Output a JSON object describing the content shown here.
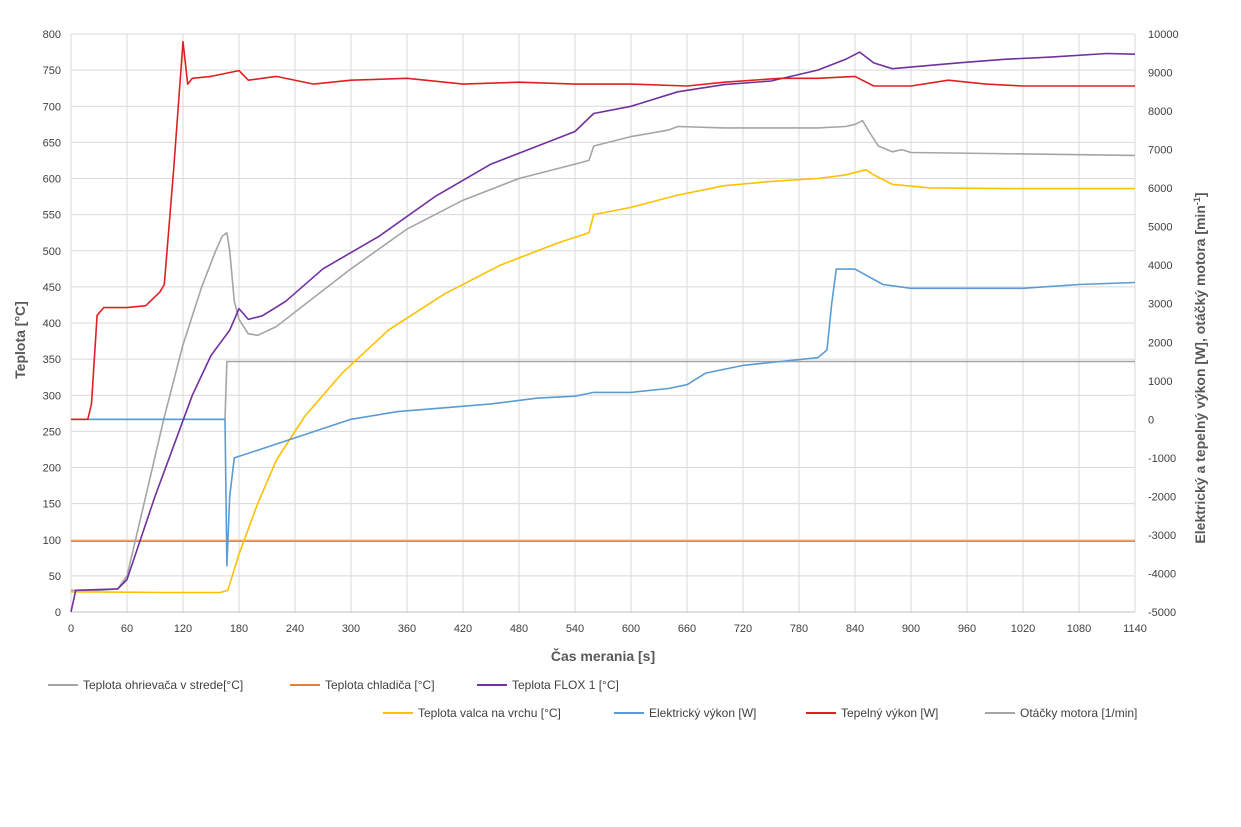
{
  "chart_data": {
    "type": "line",
    "title": "",
    "xlabel": "Čas merania [s]",
    "ylabel_left": "Teplota [°C]",
    "ylabel_right": "Elektrický a tepelný výkon [W], otáčký motora [min⁻¹]",
    "ylabel_right_main": "Elektrický a tepelný výkon [W], otáčký motora [min",
    "ylabel_right_sup": "-1",
    "ylabel_right_end": "]",
    "xlim": [
      0,
      1140
    ],
    "ylim_left": [
      0,
      800
    ],
    "ylim_right": [
      -5000,
      10000
    ],
    "x_ticks": [
      "0",
      "60",
      "120",
      "180",
      "240",
      "300",
      "360",
      "420",
      "480",
      "540",
      "600",
      "660",
      "720",
      "780",
      "840",
      "900",
      "960",
      "1020",
      "1080",
      "1140"
    ],
    "y_left_ticks": [
      "0",
      "50",
      "100",
      "150",
      "200",
      "250",
      "300",
      "350",
      "400",
      "450",
      "500",
      "550",
      "600",
      "650",
      "700",
      "750",
      "800"
    ],
    "y_right_ticks": [
      "-5000",
      "-4000",
      "-3000",
      "-2000",
      "-1000",
      "0",
      "1000",
      "2000",
      "3000",
      "4000",
      "5000",
      "6000",
      "7000",
      "8000",
      "9000",
      "10000"
    ],
    "grid": true,
    "legend_position": "bottom",
    "series": [
      {
        "name": "Teplota ohrievača v strede[°C]",
        "axis": "left",
        "color": "#a5a5a5",
        "points": [
          [
            0,
            30
          ],
          [
            30,
            30
          ],
          [
            50,
            32
          ],
          [
            60,
            50
          ],
          [
            80,
            160
          ],
          [
            100,
            270
          ],
          [
            120,
            370
          ],
          [
            140,
            450
          ],
          [
            155,
            500
          ],
          [
            162,
            520
          ],
          [
            167,
            525
          ],
          [
            170,
            500
          ],
          [
            175,
            430
          ],
          [
            180,
            405
          ],
          [
            190,
            385
          ],
          [
            200,
            383
          ],
          [
            220,
            395
          ],
          [
            250,
            425
          ],
          [
            300,
            475
          ],
          [
            360,
            530
          ],
          [
            420,
            570
          ],
          [
            480,
            600
          ],
          [
            540,
            620
          ],
          [
            555,
            625
          ],
          [
            560,
            645
          ],
          [
            600,
            658
          ],
          [
            640,
            667
          ],
          [
            650,
            672
          ],
          [
            700,
            670
          ],
          [
            800,
            670
          ],
          [
            830,
            672
          ],
          [
            840,
            675
          ],
          [
            848,
            680
          ],
          [
            855,
            665
          ],
          [
            865,
            645
          ],
          [
            880,
            637
          ],
          [
            890,
            640
          ],
          [
            900,
            636
          ],
          [
            1140,
            632
          ]
        ]
      },
      {
        "name": "Teplota chladiča [°C]",
        "axis": "left",
        "color": "#ed7d31",
        "points": [
          [
            0,
            98
          ],
          [
            1140,
            98
          ]
        ]
      },
      {
        "name": "Teplota FLOX 1 [°C]",
        "axis": "left",
        "color": "#7030a0",
        "points": [
          [
            0,
            0
          ],
          [
            5,
            30
          ],
          [
            50,
            32
          ],
          [
            60,
            45
          ],
          [
            90,
            160
          ],
          [
            110,
            230
          ],
          [
            130,
            300
          ],
          [
            150,
            355
          ],
          [
            170,
            390
          ],
          [
            180,
            420
          ],
          [
            190,
            405
          ],
          [
            205,
            410
          ],
          [
            230,
            430
          ],
          [
            270,
            475
          ],
          [
            330,
            520
          ],
          [
            390,
            575
          ],
          [
            450,
            620
          ],
          [
            510,
            650
          ],
          [
            540,
            665
          ],
          [
            560,
            690
          ],
          [
            600,
            700
          ],
          [
            650,
            720
          ],
          [
            700,
            730
          ],
          [
            750,
            735
          ],
          [
            800,
            750
          ],
          [
            830,
            765
          ],
          [
            845,
            775
          ],
          [
            860,
            760
          ],
          [
            880,
            752
          ],
          [
            950,
            760
          ],
          [
            1000,
            765
          ],
          [
            1050,
            768
          ],
          [
            1110,
            773
          ],
          [
            1140,
            772
          ]
        ]
      },
      {
        "name": "Teplota valca na vrchu [°C]",
        "axis": "left",
        "color": "#ffc000",
        "points": [
          [
            0,
            28
          ],
          [
            100,
            27
          ],
          [
            160,
            27
          ],
          [
            168,
            30
          ],
          [
            180,
            80
          ],
          [
            200,
            150
          ],
          [
            220,
            210
          ],
          [
            250,
            270
          ],
          [
            290,
            330
          ],
          [
            340,
            390
          ],
          [
            400,
            440
          ],
          [
            460,
            480
          ],
          [
            520,
            510
          ],
          [
            555,
            525
          ],
          [
            560,
            550
          ],
          [
            600,
            560
          ],
          [
            650,
            577
          ],
          [
            700,
            590
          ],
          [
            750,
            596
          ],
          [
            800,
            600
          ],
          [
            830,
            605
          ],
          [
            845,
            610
          ],
          [
            852,
            612
          ],
          [
            860,
            605
          ],
          [
            880,
            592
          ],
          [
            920,
            587
          ],
          [
            1000,
            586
          ],
          [
            1140,
            586
          ]
        ]
      },
      {
        "name": "Elektrický výkon [W]",
        "axis": "right",
        "color": "#5b9bd5",
        "points": [
          [
            0,
            0
          ],
          [
            165,
            0
          ],
          [
            167,
            -3800
          ],
          [
            170,
            -2000
          ],
          [
            175,
            -1000
          ],
          [
            200,
            -800
          ],
          [
            250,
            -400
          ],
          [
            300,
            0
          ],
          [
            350,
            200
          ],
          [
            400,
            300
          ],
          [
            450,
            400
          ],
          [
            500,
            550
          ],
          [
            540,
            600
          ],
          [
            560,
            700
          ],
          [
            600,
            700
          ],
          [
            640,
            800
          ],
          [
            660,
            900
          ],
          [
            680,
            1200
          ],
          [
            720,
            1400
          ],
          [
            760,
            1500
          ],
          [
            800,
            1600
          ],
          [
            810,
            1800
          ],
          [
            815,
            3000
          ],
          [
            820,
            3900
          ],
          [
            840,
            3900
          ],
          [
            855,
            3700
          ],
          [
            870,
            3500
          ],
          [
            900,
            3400
          ],
          [
            960,
            3400
          ],
          [
            1020,
            3400
          ],
          [
            1080,
            3500
          ],
          [
            1140,
            3550
          ]
        ]
      },
      {
        "name": "Tepelný výkon  [W]",
        "axis": "right",
        "color": "#e02020",
        "points": [
          [
            0,
            0
          ],
          [
            18,
            0
          ],
          [
            22,
            400
          ],
          [
            28,
            2700
          ],
          [
            35,
            2900
          ],
          [
            60,
            2900
          ],
          [
            80,
            2950
          ],
          [
            95,
            3300
          ],
          [
            100,
            3500
          ],
          [
            110,
            6500
          ],
          [
            120,
            9800
          ],
          [
            125,
            8700
          ],
          [
            130,
            8850
          ],
          [
            150,
            8900
          ],
          [
            180,
            9050
          ],
          [
            190,
            8800
          ],
          [
            220,
            8900
          ],
          [
            260,
            8700
          ],
          [
            300,
            8800
          ],
          [
            360,
            8850
          ],
          [
            420,
            8700
          ],
          [
            480,
            8750
          ],
          [
            540,
            8700
          ],
          [
            600,
            8700
          ],
          [
            660,
            8650
          ],
          [
            700,
            8750
          ],
          [
            760,
            8850
          ],
          [
            800,
            8850
          ],
          [
            840,
            8900
          ],
          [
            860,
            8650
          ],
          [
            900,
            8650
          ],
          [
            940,
            8800
          ],
          [
            980,
            8700
          ],
          [
            1020,
            8650
          ],
          [
            1140,
            8650
          ]
        ]
      },
      {
        "name": "Otáčky motora [1/min]",
        "axis": "right",
        "color": "#a5a5a5",
        "points": [
          [
            0,
            0
          ],
          [
            165,
            0
          ],
          [
            167,
            1500
          ],
          [
            1140,
            1500
          ]
        ]
      }
    ]
  }
}
